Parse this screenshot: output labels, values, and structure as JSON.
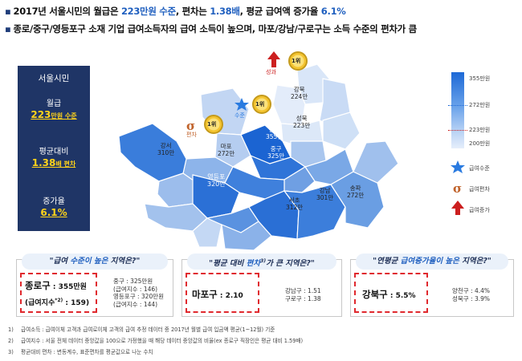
{
  "headline1": {
    "bullet": "▪",
    "a": "2017년 서울시민의 월급은 ",
    "b": "223만원 수준",
    "c": ",  편차는 ",
    "d": "1.38배",
    "e": ", 평균 급여액 증가율 ",
    "f": "6.1%"
  },
  "headline2": {
    "bullet": "▪",
    "text": "종로/중구/영등포구 소재 기업 급여소득자의 급여 소득이 높으며, 마포/강남/구로구는 소득 수준의 편차가 큼"
  },
  "panel": {
    "title": "서울시민",
    "salary_label": "월급",
    "salary_value": "223",
    "salary_unit": "만원 수준",
    "ratio_label": "평균대비",
    "ratio_value": "1.38",
    "ratio_unit": "배 편차",
    "growth_label": "증가율",
    "growth_value": "6.1%"
  },
  "map": {
    "districts": [
      {
        "name": "강북",
        "value": "224만"
      },
      {
        "name": "성북",
        "value": "223만"
      },
      {
        "name": "강서",
        "value": "310만"
      },
      {
        "name": "마포",
        "value": "272만"
      },
      {
        "name": "종로",
        "value": "355만"
      },
      {
        "name": "중구",
        "value": "325만"
      },
      {
        "name": "영등포",
        "value": "320만"
      },
      {
        "name": "강남",
        "value": "301만"
      },
      {
        "name": "송파",
        "value": "272만"
      },
      {
        "name": "서초",
        "value": "312만"
      }
    ],
    "medal_text": "1위",
    "tag_growth": "성과",
    "tag_level": "수준",
    "tag_dev": "편차"
  },
  "legend": {
    "max": "355만원",
    "mid": "272만원",
    "avg": "223만원",
    "min": "200만원",
    "star_label": "급여수준",
    "sigma_label": "급여편차",
    "arrow_label": "급여증가"
  },
  "box1": {
    "q_a": "\"급여 ",
    "q_hi": "수준이 높은",
    "q_b": " 지역은?\"",
    "main_name": "종로구",
    "main_value": " : 355만원",
    "main_sub": "(급여지수",
    "main_sup": "*2)",
    "main_sub2": " : 159)",
    "others": [
      "중구 : 325만원",
      "(급여지수 : 146)",
      "영등포구 : 320만원",
      "(급여지수 : 144)"
    ]
  },
  "box2": {
    "q_a": "\"평균 대비 ",
    "q_hi": "편차",
    "q_sup": "3)",
    "q_b": "가 큰 지역은?\"",
    "main_name": "마포구",
    "main_value": " : 2.10",
    "others": [
      "강남구 : 1.51",
      "구로구 : 1.38"
    ]
  },
  "box3": {
    "q_a": "\"연평균 ",
    "q_hi": "급여증가율이 높은",
    "q_b": " 지역은?\"",
    "main_name": "강북구",
    "main_value": " : 5.5%",
    "others": [
      "양천구 : 4.4%",
      "성북구 : 3.9%"
    ]
  },
  "footnotes": [
    {
      "n": "1)",
      "t": "급여소득 : 급여이체 고객과 급여로이체 고객의 급여 추정 데이터 중 2017년 월별 급여 입금액 평균(1~12월) 기준"
    },
    {
      "n": "2)",
      "t": "급여지수 : 서울 전체 데이터 중앙값을 100으로 가정했을 때 해당 데이터 중앙값의 비율(ex 종로구 직장인은 평균 대비 1.59배)"
    },
    {
      "n": "3)",
      "t": "평균대비 편차 : 변동계수, 표준편차를 평균값으로 나눈 수치"
    }
  ],
  "colors": {
    "navy": "#1f3566",
    "accent": "#1f5fbf",
    "highlight": "#ffd31a",
    "red": "#e0292e"
  }
}
